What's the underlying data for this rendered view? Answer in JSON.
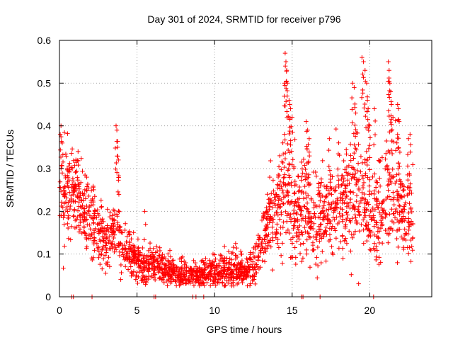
{
  "chart_data": {
    "type": "scatter",
    "title": "Day 301 of 2024, SRMTID for receiver p796",
    "xlabel": "GPS time / hours",
    "ylabel": "SRMTID / TECUs",
    "xlim": [
      0,
      24
    ],
    "ylim": [
      0,
      0.6
    ],
    "xticks": [
      0,
      5,
      10,
      15,
      20
    ],
    "yticks": [
      0,
      0.1,
      0.2,
      0.3,
      0.4,
      0.5,
      0.6
    ],
    "xtick_labels": [
      "0",
      "5",
      "10",
      "15",
      "20"
    ],
    "ytick_labels": [
      "0",
      "0.1",
      "0.2",
      "0.3",
      "0.4",
      "0.5",
      "0.6"
    ],
    "grid": true,
    "marker": "+",
    "series": [
      {
        "name": "SRMTID",
        "color": "#ff0000",
        "envelope": [
          [
            0.0,
            0.23,
            0.09
          ],
          [
            0.5,
            0.25,
            0.07
          ],
          [
            1.0,
            0.24,
            0.06
          ],
          [
            1.5,
            0.22,
            0.05
          ],
          [
            2.0,
            0.19,
            0.05
          ],
          [
            2.5,
            0.15,
            0.045
          ],
          [
            3.0,
            0.13,
            0.04
          ],
          [
            3.5,
            0.15,
            0.04
          ],
          [
            4.0,
            0.14,
            0.045
          ],
          [
            4.5,
            0.11,
            0.035
          ],
          [
            5.0,
            0.08,
            0.025
          ],
          [
            5.5,
            0.075,
            0.025
          ],
          [
            6.0,
            0.08,
            0.025
          ],
          [
            6.5,
            0.07,
            0.025
          ],
          [
            7.0,
            0.06,
            0.02
          ],
          [
            7.5,
            0.055,
            0.02
          ],
          [
            8.0,
            0.05,
            0.02
          ],
          [
            8.5,
            0.05,
            0.018
          ],
          [
            9.0,
            0.05,
            0.018
          ],
          [
            9.5,
            0.055,
            0.02
          ],
          [
            10.0,
            0.06,
            0.02
          ],
          [
            10.5,
            0.06,
            0.025
          ],
          [
            11.0,
            0.065,
            0.025
          ],
          [
            11.5,
            0.06,
            0.025
          ],
          [
            12.0,
            0.06,
            0.02
          ],
          [
            12.5,
            0.07,
            0.025
          ],
          [
            13.0,
            0.12,
            0.04
          ],
          [
            13.5,
            0.18,
            0.05
          ],
          [
            14.0,
            0.2,
            0.06
          ],
          [
            14.5,
            0.24,
            0.07
          ],
          [
            15.0,
            0.22,
            0.07
          ],
          [
            15.5,
            0.2,
            0.07
          ],
          [
            16.0,
            0.2,
            0.07
          ],
          [
            16.5,
            0.18,
            0.06
          ],
          [
            17.0,
            0.19,
            0.06
          ],
          [
            17.5,
            0.21,
            0.06
          ],
          [
            18.0,
            0.22,
            0.06
          ],
          [
            18.5,
            0.23,
            0.07
          ],
          [
            19.0,
            0.25,
            0.08
          ],
          [
            19.5,
            0.23,
            0.08
          ],
          [
            20.0,
            0.2,
            0.07
          ],
          [
            20.5,
            0.18,
            0.07
          ],
          [
            21.0,
            0.22,
            0.08
          ],
          [
            21.5,
            0.25,
            0.08
          ],
          [
            22.0,
            0.22,
            0.07
          ],
          [
            22.5,
            0.2,
            0.06
          ],
          [
            22.8,
            0.19,
            0.06
          ]
        ],
        "spikes": [
          [
            0.05,
            0.38
          ],
          [
            0.1,
            0.4
          ],
          [
            0.5,
            0.3
          ],
          [
            1.2,
            0.34
          ],
          [
            3.65,
            0.4
          ],
          [
            3.7,
            0.39
          ],
          [
            3.75,
            0.35
          ],
          [
            3.8,
            0.32
          ],
          [
            5.5,
            0.2
          ],
          [
            9.9,
            0.1
          ],
          [
            13.4,
            0.24
          ],
          [
            14.2,
            0.33
          ],
          [
            14.4,
            0.36
          ],
          [
            14.5,
            0.5
          ],
          [
            14.55,
            0.57
          ],
          [
            14.6,
            0.55
          ],
          [
            14.65,
            0.53
          ],
          [
            14.7,
            0.5
          ],
          [
            14.8,
            0.46
          ],
          [
            14.85,
            0.45
          ],
          [
            14.9,
            0.44
          ],
          [
            15.0,
            0.42
          ],
          [
            15.9,
            0.41
          ],
          [
            16.0,
            0.39
          ],
          [
            16.1,
            0.37
          ],
          [
            17.4,
            0.37
          ],
          [
            18.0,
            0.36
          ],
          [
            18.9,
            0.5
          ],
          [
            19.0,
            0.49
          ],
          [
            19.1,
            0.43
          ],
          [
            19.5,
            0.56
          ],
          [
            19.6,
            0.55
          ],
          [
            19.7,
            0.53
          ],
          [
            19.8,
            0.5
          ],
          [
            19.85,
            0.46
          ],
          [
            19.9,
            0.44
          ],
          [
            20.0,
            0.4
          ],
          [
            20.3,
            0.44
          ],
          [
            21.2,
            0.55
          ],
          [
            21.25,
            0.53
          ],
          [
            21.3,
            0.5
          ],
          [
            21.35,
            0.48
          ],
          [
            21.4,
            0.45
          ],
          [
            21.5,
            0.42
          ],
          [
            21.8,
            0.45
          ],
          [
            21.85,
            0.44
          ],
          [
            21.9,
            0.41
          ],
          [
            22.5,
            0.37
          ],
          [
            22.6,
            0.38
          ]
        ],
        "zeros": [
          0.8,
          0.9,
          2.1,
          6.1,
          6.2,
          8.6,
          8.8,
          9.3,
          15.6,
          15.7,
          16.8,
          20.25
        ]
      }
    ]
  }
}
